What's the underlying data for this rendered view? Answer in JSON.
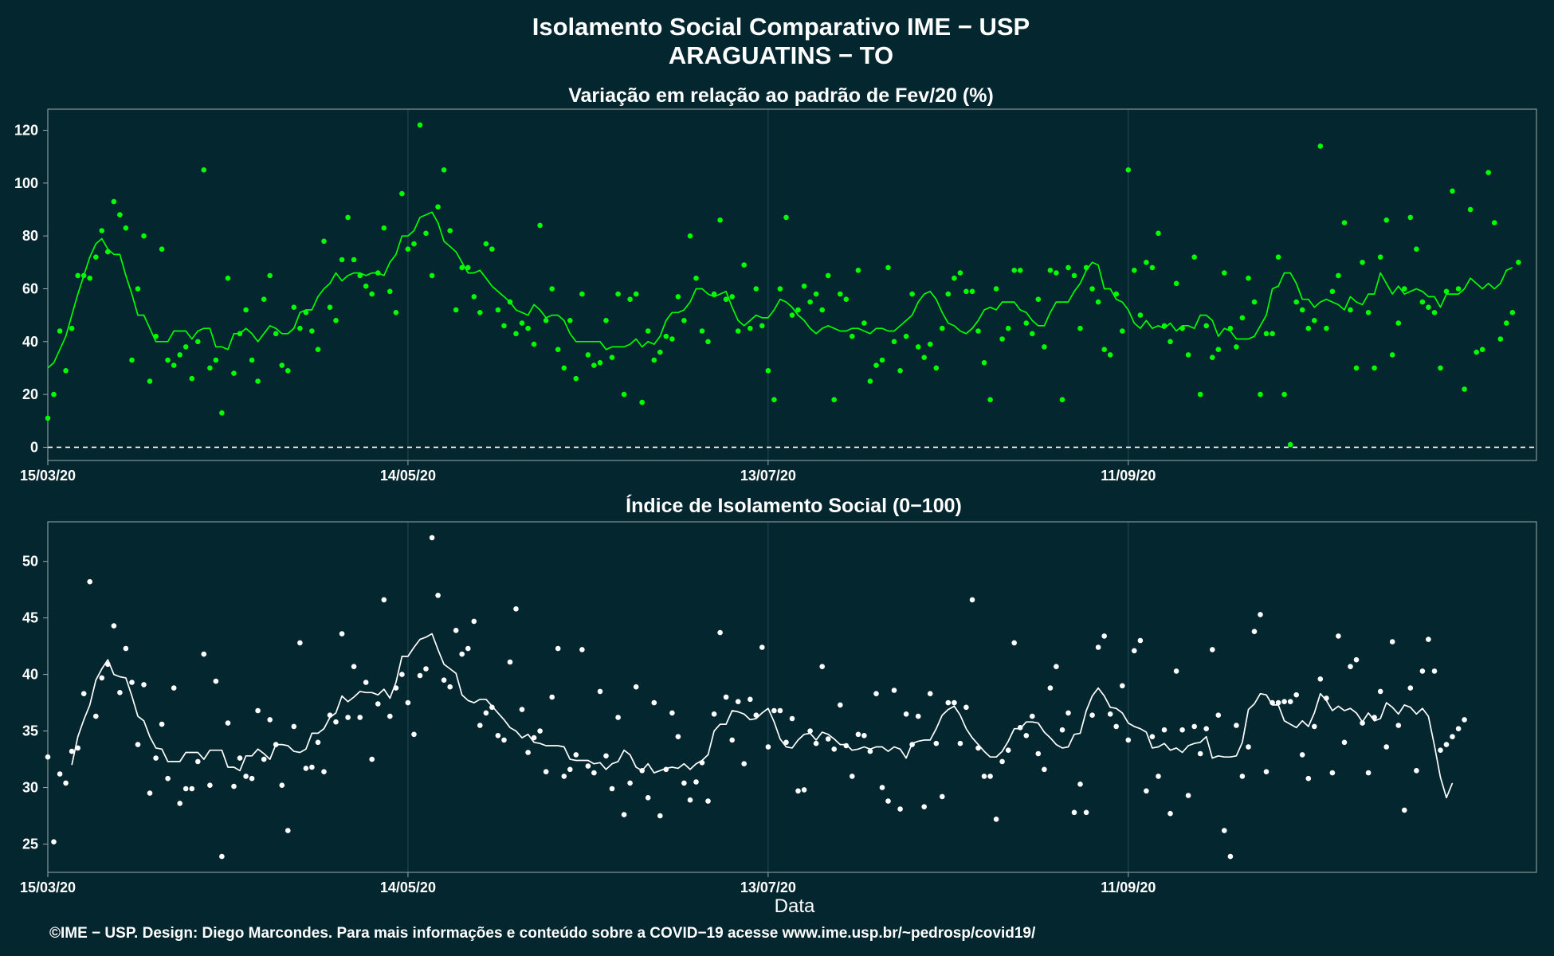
{
  "header": {
    "title": "Isolamento Social Comparativo IME − USP",
    "subtitle": "ARAGUATINS − TO"
  },
  "footer": {
    "text": "©IME − USP. Design: Diego Marcondes. Para mais informações e conteúdo sobre a COVID−19 acesse www.ime.usp.br/~pedrosp/covid19/"
  },
  "colors": {
    "background": "#03262f",
    "top_series": "#00ff00",
    "bottom_series": "#ffffff",
    "grid": "#1d4650",
    "panel_border": "#9aa9ad"
  },
  "chart_data": [
    {
      "type": "scatter",
      "title": "Variação em relação ao padrão de Fev/20 (%)",
      "xlabel": "",
      "ylabel": "",
      "x_start": "15/03/20",
      "x_end": "18/11/20",
      "x_ticks": [
        "15/03/20",
        "14/05/20",
        "13/07/20",
        "11/09/20"
      ],
      "ylim": [
        -5,
        128
      ],
      "y_ticks": [
        0,
        20,
        40,
        60,
        80,
        100,
        120
      ],
      "reference_line": {
        "y": 0,
        "style": "dashed"
      },
      "grid": "vertical",
      "series": [
        {
          "kind": "points",
          "values": [
            11,
            20,
            44,
            29,
            45,
            65,
            65,
            64,
            72,
            82,
            74,
            93,
            88,
            83,
            33,
            60,
            80,
            25,
            42,
            75,
            33,
            31,
            35,
            38,
            26,
            40,
            105,
            30,
            33,
            13,
            64,
            28,
            43,
            52,
            33,
            25,
            56,
            65,
            43,
            31,
            29,
            53,
            45,
            51,
            44,
            37,
            78,
            53,
            48,
            71,
            87,
            71,
            65,
            61,
            58,
            66,
            83,
            59,
            51,
            96,
            75,
            77,
            122,
            81,
            65,
            91,
            105,
            82,
            52,
            68,
            68,
            57,
            51,
            77,
            75,
            52,
            46,
            55,
            43,
            47,
            45,
            39,
            84,
            48,
            60,
            37,
            30,
            48,
            26,
            58,
            35,
            31,
            32,
            48,
            34,
            58,
            20,
            56,
            58,
            17,
            44,
            33,
            36,
            42,
            41,
            57,
            48,
            80,
            64,
            44,
            40,
            58,
            86,
            56,
            57,
            44,
            69,
            45,
            60,
            46,
            29,
            18,
            60,
            87,
            50,
            52,
            61,
            55,
            58,
            52,
            65,
            18,
            58,
            56,
            42,
            67,
            47,
            25,
            31,
            33,
            68,
            40,
            29,
            42,
            58,
            38,
            34,
            39,
            30,
            45,
            58,
            64,
            66,
            59,
            59,
            44,
            32,
            18,
            60,
            41,
            45,
            67,
            67,
            47,
            43,
            56,
            38,
            67,
            66,
            18,
            68,
            65,
            45,
            68,
            60,
            55,
            37,
            35,
            58,
            44,
            105,
            67,
            50,
            70,
            68,
            81,
            46,
            40,
            62,
            45,
            35,
            72,
            20,
            46,
            34,
            37,
            66,
            45,
            38,
            49,
            64,
            55,
            20,
            43,
            43,
            72,
            20,
            1,
            55,
            52,
            45,
            48,
            114,
            45,
            59,
            65,
            85,
            52,
            30,
            70,
            51,
            30,
            72,
            86,
            35,
            47,
            60,
            87,
            75,
            55,
            53,
            51,
            30,
            59,
            97,
            60,
            22,
            90,
            36,
            37,
            104,
            85,
            41,
            47,
            51,
            70
          ]
        },
        {
          "kind": "moving_average",
          "values": [
            30,
            32,
            37,
            42,
            50,
            58,
            65,
            72,
            77,
            79,
            75,
            73,
            73,
            65,
            58,
            50,
            50,
            45,
            40,
            40,
            40,
            44,
            44,
            44,
            41,
            44,
            45,
            45,
            38,
            38,
            37,
            43,
            43,
            45,
            43,
            40,
            43,
            46,
            45,
            43,
            43,
            45,
            51,
            52,
            52,
            57,
            60,
            62,
            66,
            63,
            65,
            66,
            66,
            65,
            66,
            66,
            65,
            70,
            73,
            80,
            80,
            82,
            87,
            88,
            89,
            85,
            78,
            76,
            74,
            70,
            66,
            66,
            67,
            64,
            61,
            59,
            57,
            55,
            52,
            51,
            50,
            54,
            52,
            49,
            50,
            50,
            48,
            43,
            40,
            40,
            40,
            40,
            40,
            37,
            38,
            38,
            38,
            39,
            41,
            38,
            40,
            39,
            42,
            48,
            51,
            51,
            52,
            55,
            60,
            60,
            58,
            57,
            58,
            59,
            53,
            48,
            46,
            48,
            50,
            49,
            49,
            52,
            56,
            55,
            53,
            50,
            48,
            45,
            43,
            45,
            46,
            45,
            44,
            44,
            45,
            45,
            44,
            43,
            45,
            45,
            44,
            44,
            46,
            48,
            50,
            55,
            58,
            59,
            56,
            51,
            47,
            46,
            44,
            43,
            45,
            48,
            52,
            53,
            52,
            55,
            55,
            55,
            52,
            51,
            48,
            46,
            46,
            51,
            55,
            55,
            55,
            59,
            62,
            67,
            70,
            69,
            60,
            60,
            56,
            55,
            52,
            47,
            45,
            48,
            45,
            46,
            45,
            47,
            44,
            46,
            46,
            45,
            50,
            50,
            48,
            42,
            45,
            44,
            41,
            41,
            41,
            42,
            46,
            50,
            60,
            61,
            66,
            66,
            62,
            56,
            56,
            53,
            55,
            56,
            55,
            54,
            52,
            57,
            55,
            54,
            58,
            58,
            66,
            62,
            58,
            61,
            58,
            59,
            60,
            59,
            57,
            57,
            53,
            58,
            58,
            58,
            60,
            64,
            62,
            60,
            62,
            60,
            62,
            67,
            68
          ]
        }
      ]
    },
    {
      "type": "scatter",
      "title": "Índice de Isolamento Social (0−100)",
      "xlabel": "Data",
      "ylabel": "",
      "x_start": "15/03/20",
      "x_end": "18/11/20",
      "x_ticks": [
        "15/03/20",
        "14/05/20",
        "13/07/20",
        "11/09/20"
      ],
      "ylim": [
        22.5,
        53.5
      ],
      "y_ticks": [
        25,
        30,
        35,
        40,
        45,
        50
      ],
      "grid": "vertical",
      "series": [
        {
          "kind": "points",
          "values": [
            32.7,
            25.2,
            31.2,
            30.4,
            33.2,
            33.5,
            38.3,
            48.2,
            36.3,
            39.7,
            40.9,
            44.3,
            38.4,
            42.3,
            39.3,
            33.8,
            39.1,
            29.5,
            32.6,
            35.6,
            30.8,
            38.8,
            28.6,
            29.9,
            29.9,
            32.3,
            41.8,
            30.2,
            39.4,
            23.9,
            35.7,
            30.1,
            32.6,
            31,
            30.8,
            36.8,
            32.5,
            36,
            33.8,
            30.2,
            26.2,
            35.4,
            42.8,
            31.7,
            31.8,
            34,
            31.4,
            36.4,
            35.8,
            43.6,
            36.2,
            40.7,
            36.2,
            39.3,
            32.5,
            37.4,
            46.6,
            36.3,
            38.8,
            40,
            37.5,
            34.7,
            39.9,
            40.5,
            52.1,
            47,
            39.5,
            38.9,
            43.9,
            41.8,
            42.3,
            44.7,
            35.5,
            36.6,
            37.1,
            34.6,
            34.2,
            41.1,
            45.8,
            36.9,
            33.1,
            34.4,
            35,
            31.4,
            38,
            42.3,
            31,
            31.6,
            32.9,
            42.2,
            31.9,
            31.3,
            38.5,
            32.8,
            29.9,
            36.2,
            27.6,
            30.4,
            38.9,
            31.5,
            29.1,
            37.5,
            27.5,
            31.6,
            36.6,
            34.5,
            30.4,
            28.9,
            30.5,
            32.2,
            28.8,
            36.5,
            43.7,
            38,
            34.2,
            37.6,
            32.1,
            37.8,
            36.4,
            42.4,
            33.6,
            36.8,
            36.8,
            34,
            36.1,
            29.7,
            29.8,
            35,
            33.9,
            40.7,
            34.3,
            33.4,
            37.3,
            33.7,
            31,
            34.7,
            34.6,
            33.2,
            38.3,
            30,
            28.8,
            38.6,
            28.1,
            36.5,
            33.8,
            36.3,
            28.3,
            38.3,
            33.9,
            29.2,
            37.5,
            37.5,
            33.9,
            37.1,
            46.6,
            33.5,
            31,
            31,
            27.2,
            32.3,
            33.3,
            42.8,
            35.3,
            34.6,
            36.3,
            33,
            31.6,
            38.8,
            40.7,
            35.1,
            36.6,
            27.8,
            30.3,
            27.8,
            36.4,
            42.4,
            43.4,
            36.5,
            35.4,
            39,
            34.2,
            42.1,
            43,
            29.7,
            34.5,
            31,
            35.1,
            27.7,
            40.3,
            35.1,
            29.3,
            35.4,
            33,
            35.2,
            42.2,
            36.4,
            26.2,
            23.9,
            35.5,
            31,
            33.6,
            43.8,
            45.3,
            31.4,
            37.5,
            37.5,
            37.6,
            37.6,
            38.2,
            32.9,
            30.8,
            35.4,
            39.6,
            37.9,
            31.3,
            43.4,
            34,
            40.7,
            41.3,
            35.7,
            31.3,
            36.2,
            38.5,
            33.6,
            42.9,
            35.5,
            28,
            38.8,
            31.5,
            40.3,
            43.1,
            40.3,
            33.3,
            33.8,
            34.5,
            35.2,
            36
          ]
        },
        {
          "kind": "moving_average",
          "values": [
            null,
            null,
            null,
            null,
            32,
            34.5,
            36,
            37.3,
            39.5,
            40.5,
            41.3,
            40,
            39.8,
            39.7,
            38.1,
            36.3,
            35.9,
            34.5,
            33.5,
            33.4,
            32.3,
            32.3,
            32.3,
            33.1,
            33.1,
            33.1,
            32.5,
            33.3,
            33.3,
            33.3,
            31.8,
            31.8,
            31.5,
            32.8,
            32.8,
            33.4,
            33,
            32.5,
            33.8,
            33.8,
            33.7,
            33.2,
            33.1,
            33.4,
            34.8,
            34.8,
            35.2,
            36.2,
            36.6,
            38.1,
            37.6,
            38,
            38.5,
            38.4,
            38.4,
            38.2,
            38.7,
            37.9,
            39.3,
            41.6,
            41.6,
            42.4,
            43.1,
            43.3,
            43.6,
            42.2,
            40.9,
            40.5,
            40.1,
            38.2,
            37.7,
            37.5,
            37.8,
            37.8,
            37.2,
            36.6,
            36,
            35.3,
            35,
            34.4,
            34.7,
            34,
            33.9,
            33.7,
            33.7,
            33.7,
            33.6,
            32.5,
            32.4,
            32.4,
            32.4,
            32.1,
            32.2,
            31.6,
            32.1,
            32.3,
            33.3,
            32.9,
            31.8,
            31.5,
            32.1,
            31.3,
            31.5,
            31.7,
            31.8,
            31.7,
            32.1,
            31.6,
            32.1,
            32.4,
            32.9,
            35,
            35.6,
            35.6,
            36.8,
            36.7,
            36.5,
            36,
            36.1,
            36.6,
            37,
            35.8,
            34.3,
            33.6,
            33.5,
            34.2,
            34.7,
            34.8,
            34.2,
            34.9,
            34.7,
            34.3,
            33.8,
            33.8,
            33.3,
            33.4,
            33.6,
            33.4,
            33.6,
            33.6,
            33.2,
            33.6,
            33.4,
            32.6,
            33.9,
            34.1,
            34.2,
            34.2,
            35.2,
            36.4,
            36.9,
            37.2,
            36.4,
            35.2,
            34.4,
            33.8,
            33.2,
            32.7,
            32.7,
            33.2,
            34.1,
            35.2,
            35.2,
            35.8,
            35.8,
            35.7,
            34.9,
            34.4,
            33.8,
            33.5,
            33.6,
            34.7,
            34.8,
            36.8,
            38.1,
            38.8,
            38.1,
            37.1,
            37,
            36.6,
            35.7,
            35.4,
            35.2,
            34.9,
            33.5,
            33.6,
            33.9,
            33.3,
            33.5,
            33.1,
            33.7,
            33.9,
            34,
            34.5,
            32.6,
            32.8,
            32.7,
            32.7,
            32.8,
            34,
            36.9,
            37.4,
            38.3,
            38.2,
            37.3,
            37.3,
            35.9,
            35.6,
            35.3,
            35.9,
            35.4,
            36.6,
            38.3,
            37.7,
            36.8,
            37.2,
            36.8,
            37,
            36.6,
            35.8,
            36.6,
            35.9,
            36.1,
            37.5,
            37.1,
            36.5,
            37.3,
            37.1,
            36.5,
            37,
            36.3,
            33.7,
            30.9,
            29.1,
            30.4
          ]
        }
      ]
    }
  ]
}
